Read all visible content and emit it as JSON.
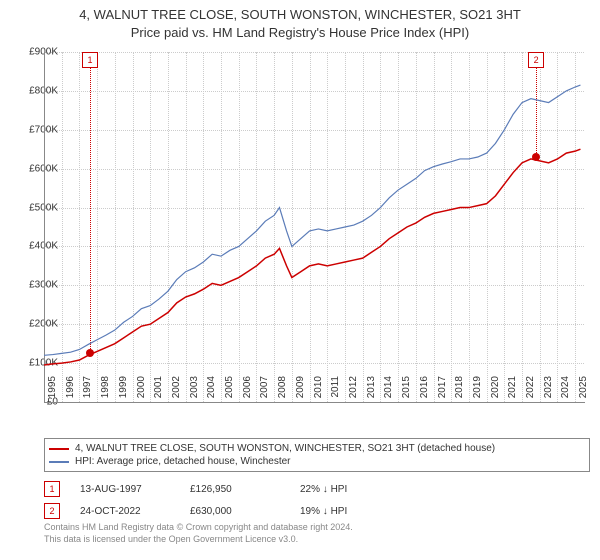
{
  "title_line1": "4, WALNUT TREE CLOSE, SOUTH WONSTON, WINCHESTER, SO21 3HT",
  "title_line2": "Price paid vs. HM Land Registry's House Price Index (HPI)",
  "chart": {
    "type": "line",
    "background_color": "#ffffff",
    "grid_color": "#cccccc",
    "axis_color": "#888888",
    "ylim": [
      0,
      900000
    ],
    "ytick_step": 100000,
    "yticks": [
      "£0",
      "£100K",
      "£200K",
      "£300K",
      "£400K",
      "£500K",
      "£600K",
      "£700K",
      "£800K",
      "£900K"
    ],
    "xlim": [
      1995,
      2025.5
    ],
    "xticks": [
      1995,
      1996,
      1997,
      1998,
      1999,
      2000,
      2001,
      2002,
      2003,
      2004,
      2005,
      2006,
      2007,
      2008,
      2009,
      2010,
      2011,
      2012,
      2013,
      2014,
      2015,
      2016,
      2017,
      2018,
      2019,
      2020,
      2021,
      2022,
      2023,
      2024,
      2025
    ],
    "series": [
      {
        "name": "red",
        "label": "4, WALNUT TREE CLOSE, SOUTH WONSTON, WINCHESTER, SO21 3HT (detached house)",
        "color": "#cc0000",
        "line_width": 1.5,
        "data": [
          [
            1995,
            95000
          ],
          [
            1995.5,
            98000
          ],
          [
            1996,
            100000
          ],
          [
            1996.5,
            103000
          ],
          [
            1997,
            108000
          ],
          [
            1997.5,
            120000
          ],
          [
            1998,
            130000
          ],
          [
            1998.5,
            140000
          ],
          [
            1999,
            150000
          ],
          [
            1999.5,
            165000
          ],
          [
            2000,
            180000
          ],
          [
            2000.5,
            195000
          ],
          [
            2001,
            200000
          ],
          [
            2001.5,
            215000
          ],
          [
            2002,
            230000
          ],
          [
            2002.5,
            255000
          ],
          [
            2003,
            270000
          ],
          [
            2003.5,
            278000
          ],
          [
            2004,
            290000
          ],
          [
            2004.5,
            305000
          ],
          [
            2005,
            300000
          ],
          [
            2005.5,
            310000
          ],
          [
            2006,
            320000
          ],
          [
            2006.5,
            335000
          ],
          [
            2007,
            350000
          ],
          [
            2007.5,
            370000
          ],
          [
            2008,
            380000
          ],
          [
            2008.3,
            395000
          ],
          [
            2008.7,
            350000
          ],
          [
            2009,
            320000
          ],
          [
            2009.5,
            335000
          ],
          [
            2010,
            350000
          ],
          [
            2010.5,
            355000
          ],
          [
            2011,
            350000
          ],
          [
            2011.5,
            355000
          ],
          [
            2012,
            360000
          ],
          [
            2012.5,
            365000
          ],
          [
            2013,
            370000
          ],
          [
            2013.5,
            385000
          ],
          [
            2014,
            400000
          ],
          [
            2014.5,
            420000
          ],
          [
            2015,
            435000
          ],
          [
            2015.5,
            450000
          ],
          [
            2016,
            460000
          ],
          [
            2016.5,
            475000
          ],
          [
            2017,
            485000
          ],
          [
            2017.5,
            490000
          ],
          [
            2018,
            495000
          ],
          [
            2018.5,
            500000
          ],
          [
            2019,
            500000
          ],
          [
            2019.5,
            505000
          ],
          [
            2020,
            510000
          ],
          [
            2020.5,
            530000
          ],
          [
            2021,
            560000
          ],
          [
            2021.5,
            590000
          ],
          [
            2022,
            615000
          ],
          [
            2022.5,
            625000
          ],
          [
            2023,
            620000
          ],
          [
            2023.5,
            615000
          ],
          [
            2024,
            625000
          ],
          [
            2024.5,
            640000
          ],
          [
            2025,
            645000
          ],
          [
            2025.3,
            650000
          ]
        ]
      },
      {
        "name": "blue",
        "label": "HPI: Average price, detached house, Winchester",
        "color": "#5b7cb8",
        "line_width": 1.2,
        "data": [
          [
            1995,
            120000
          ],
          [
            1995.5,
            122000
          ],
          [
            1996,
            125000
          ],
          [
            1996.5,
            128000
          ],
          [
            1997,
            135000
          ],
          [
            1997.5,
            148000
          ],
          [
            1998,
            160000
          ],
          [
            1998.5,
            172000
          ],
          [
            1999,
            185000
          ],
          [
            1999.5,
            205000
          ],
          [
            2000,
            220000
          ],
          [
            2000.5,
            240000
          ],
          [
            2001,
            248000
          ],
          [
            2001.5,
            265000
          ],
          [
            2002,
            285000
          ],
          [
            2002.5,
            315000
          ],
          [
            2003,
            335000
          ],
          [
            2003.5,
            345000
          ],
          [
            2004,
            360000
          ],
          [
            2004.5,
            380000
          ],
          [
            2005,
            375000
          ],
          [
            2005.5,
            390000
          ],
          [
            2006,
            400000
          ],
          [
            2006.5,
            420000
          ],
          [
            2007,
            440000
          ],
          [
            2007.5,
            465000
          ],
          [
            2008,
            480000
          ],
          [
            2008.3,
            500000
          ],
          [
            2008.7,
            440000
          ],
          [
            2009,
            400000
          ],
          [
            2009.5,
            420000
          ],
          [
            2010,
            440000
          ],
          [
            2010.5,
            445000
          ],
          [
            2011,
            440000
          ],
          [
            2011.5,
            445000
          ],
          [
            2012,
            450000
          ],
          [
            2012.5,
            455000
          ],
          [
            2013,
            465000
          ],
          [
            2013.5,
            480000
          ],
          [
            2014,
            500000
          ],
          [
            2014.5,
            525000
          ],
          [
            2015,
            545000
          ],
          [
            2015.5,
            560000
          ],
          [
            2016,
            575000
          ],
          [
            2016.5,
            595000
          ],
          [
            2017,
            605000
          ],
          [
            2017.5,
            612000
          ],
          [
            2018,
            618000
          ],
          [
            2018.5,
            625000
          ],
          [
            2019,
            625000
          ],
          [
            2019.5,
            630000
          ],
          [
            2020,
            640000
          ],
          [
            2020.5,
            665000
          ],
          [
            2021,
            700000
          ],
          [
            2021.5,
            740000
          ],
          [
            2022,
            770000
          ],
          [
            2022.5,
            780000
          ],
          [
            2023,
            775000
          ],
          [
            2023.5,
            770000
          ],
          [
            2024,
            785000
          ],
          [
            2024.5,
            800000
          ],
          [
            2025,
            810000
          ],
          [
            2025.3,
            815000
          ]
        ]
      }
    ],
    "markers": [
      {
        "id": "1",
        "x": 1997.6,
        "y": 126950,
        "color": "#cc0000"
      },
      {
        "id": "2",
        "x": 2022.8,
        "y": 630000,
        "color": "#cc0000"
      }
    ]
  },
  "transactions": [
    {
      "id": "1",
      "date": "13-AUG-1997",
      "price": "£126,950",
      "delta": "22% ↓ HPI",
      "color": "#cc0000"
    },
    {
      "id": "2",
      "date": "24-OCT-2022",
      "price": "£630,000",
      "delta": "19% ↓ HPI",
      "color": "#cc0000"
    }
  ],
  "footer_line1": "Contains HM Land Registry data © Crown copyright and database right 2024.",
  "footer_line2": "This data is licensed under the Open Government Licence v3.0."
}
